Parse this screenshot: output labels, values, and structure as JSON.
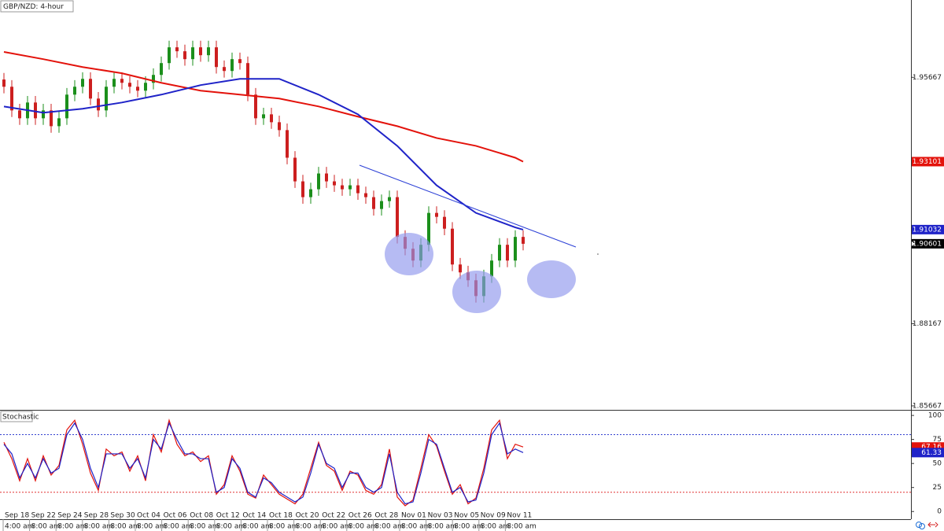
{
  "chart_data": [
    {
      "type": "candlestick",
      "title": "GBP/NZD: 4-hour",
      "open": [
        1.956,
        1.9538,
        1.9466,
        1.9442,
        1.949,
        1.9442,
        1.9466,
        1.9418,
        1.9442,
        1.9514,
        1.9538,
        1.9562,
        1.9502,
        1.9466,
        1.9538,
        1.9562,
        1.955,
        1.9538,
        1.9526,
        1.955,
        1.9574,
        1.961,
        1.9658,
        1.9646,
        1.9622,
        1.9658,
        1.9634,
        1.9658,
        1.9598,
        1.9586,
        1.9622,
        1.961,
        1.9514,
        1.9442,
        1.9454,
        1.943,
        1.9406,
        1.9322,
        1.925,
        1.9202,
        1.9226,
        1.9274,
        1.925,
        1.9238,
        1.9226,
        1.9238,
        1.9214,
        1.9202,
        1.9166,
        1.919,
        1.9202,
        1.9081,
        1.9045,
        1.9009,
        1.9057,
        1.9154,
        1.9142,
        1.9106,
        1.8997,
        1.8973,
        1.8949,
        1.8901,
        1.8961,
        1.9009,
        1.9057,
        1.9009,
        1.9081
      ],
      "high": [
        1.958,
        1.9558,
        1.9486,
        1.951,
        1.951,
        1.9486,
        1.9486,
        1.9462,
        1.9534,
        1.9558,
        1.9582,
        1.9582,
        1.9522,
        1.9558,
        1.9582,
        1.9582,
        1.957,
        1.9558,
        1.957,
        1.9594,
        1.963,
        1.9678,
        1.9678,
        1.9666,
        1.9678,
        1.9678,
        1.9678,
        1.9678,
        1.9618,
        1.9642,
        1.9642,
        1.963,
        1.9534,
        1.9474,
        1.9474,
        1.945,
        1.9426,
        1.9342,
        1.927,
        1.9246,
        1.9294,
        1.9294,
        1.927,
        1.9258,
        1.9258,
        1.9258,
        1.9234,
        1.9222,
        1.921,
        1.9222,
        1.9222,
        1.9101,
        1.9065,
        1.9077,
        1.9174,
        1.9174,
        1.9162,
        1.9126,
        1.9017,
        1.8993,
        1.8969,
        1.8981,
        1.9029,
        1.9077,
        1.9077,
        1.9101,
        1.9101
      ],
      "low": [
        1.9518,
        1.9446,
        1.9422,
        1.9422,
        1.9422,
        1.9422,
        1.9398,
        1.9398,
        1.9422,
        1.9494,
        1.9518,
        1.9482,
        1.9446,
        1.9446,
        1.9518,
        1.953,
        1.9518,
        1.9506,
        1.9506,
        1.953,
        1.9554,
        1.959,
        1.9626,
        1.9602,
        1.9602,
        1.9614,
        1.9614,
        1.9578,
        1.9566,
        1.9566,
        1.959,
        1.9494,
        1.9422,
        1.9422,
        1.941,
        1.9386,
        1.9302,
        1.923,
        1.9182,
        1.9182,
        1.9206,
        1.923,
        1.9218,
        1.9206,
        1.9206,
        1.9194,
        1.9182,
        1.9146,
        1.9146,
        1.917,
        1.9061,
        1.9025,
        1.8989,
        1.8989,
        1.9037,
        1.9122,
        1.9086,
        1.8977,
        1.8953,
        1.8929,
        1.8881,
        1.8881,
        1.8941,
        1.8989,
        1.8989,
        1.8989,
        1.904
      ],
      "close": [
        1.9538,
        1.9466,
        1.9442,
        1.949,
        1.9442,
        1.9466,
        1.9418,
        1.9442,
        1.9514,
        1.9538,
        1.9562,
        1.9502,
        1.9466,
        1.9538,
        1.9562,
        1.955,
        1.9538,
        1.9526,
        1.955,
        1.9574,
        1.961,
        1.9658,
        1.9646,
        1.9622,
        1.9658,
        1.9634,
        1.9658,
        1.9598,
        1.9586,
        1.9622,
        1.961,
        1.9514,
        1.9442,
        1.9454,
        1.943,
        1.9406,
        1.9322,
        1.925,
        1.9202,
        1.9226,
        1.9274,
        1.925,
        1.9238,
        1.9226,
        1.9238,
        1.9214,
        1.9202,
        1.9166,
        1.919,
        1.9202,
        1.9081,
        1.9045,
        1.9009,
        1.9057,
        1.9154,
        1.9142,
        1.9106,
        1.8997,
        1.8973,
        1.8949,
        1.8901,
        1.8961,
        1.9009,
        1.9057,
        1.9009,
        1.9081,
        1.906
      ],
      "up_color": "#1b8f1b",
      "down_color": "#cc1f1f",
      "overlays": [
        {
          "color": "#e3120b",
          "x": [
            0,
            5,
            10,
            15,
            20,
            25,
            30,
            35,
            40,
            45,
            50,
            55,
            60,
            65,
            66
          ],
          "values": [
            1.9644,
            1.9622,
            1.9598,
            1.9579,
            1.955,
            1.9526,
            1.9514,
            1.9502,
            1.9478,
            1.9447,
            1.9418,
            1.9382,
            1.9358,
            1.9322,
            1.931
          ]
        },
        {
          "color": "#1f23c8",
          "x": [
            0,
            5,
            10,
            15,
            20,
            25,
            30,
            35,
            40,
            45,
            50,
            55,
            60,
            65,
            66
          ],
          "values": [
            1.9478,
            1.9459,
            1.9471,
            1.949,
            1.9514,
            1.9543,
            1.9562,
            1.9562,
            1.9514,
            1.9454,
            1.9358,
            1.9238,
            1.9154,
            1.911,
            1.9103
          ]
        }
      ],
      "price_labels": [
        {
          "value": 1.93101,
          "color": "#e3120b"
        },
        {
          "value": 1.91032,
          "color": "#1f23c8"
        },
        {
          "value": 1.90601,
          "color": "#000000"
        }
      ],
      "xlim": [
        -0.5,
        115.3
      ],
      "ylim": [
        1.8557,
        1.9802
      ],
      "yticks": [
        1.85667,
        1.88167,
        1.95667
      ]
    },
    {
      "type": "line",
      "title": "Stochastic",
      "series": [
        {
          "color": "#e3120b",
          "values": [
            72,
            55,
            32,
            55,
            32,
            58,
            38,
            48,
            85,
            95,
            70,
            40,
            22,
            65,
            58,
            62,
            42,
            58,
            32,
            80,
            62,
            95,
            70,
            58,
            62,
            52,
            58,
            18,
            28,
            58,
            42,
            18,
            14,
            38,
            28,
            18,
            13,
            8,
            18,
            45,
            72,
            48,
            42,
            22,
            42,
            38,
            22,
            18,
            28,
            65,
            15,
            6,
            12,
            45,
            80,
            68,
            42,
            18,
            28,
            8,
            14,
            45,
            85,
            95,
            55,
            70,
            67.16
          ]
        },
        {
          "color": "#1f23c8",
          "values": [
            70,
            60,
            35,
            50,
            35,
            55,
            40,
            45,
            80,
            92,
            75,
            45,
            25,
            60,
            60,
            60,
            45,
            55,
            35,
            75,
            65,
            92,
            75,
            60,
            60,
            55,
            55,
            20,
            25,
            55,
            45,
            20,
            15,
            35,
            30,
            20,
            15,
            10,
            15,
            40,
            70,
            50,
            45,
            25,
            40,
            40,
            25,
            20,
            25,
            60,
            20,
            8,
            10,
            40,
            75,
            70,
            45,
            20,
            25,
            10,
            12,
            40,
            80,
            92,
            60,
            65,
            61.33
          ]
        }
      ],
      "levels": [
        {
          "value": 80,
          "color": "#3340d0"
        },
        {
          "value": 20,
          "color": "#e03030"
        }
      ],
      "price_labels": [
        {
          "value": 67.16,
          "color": "#e3120b"
        },
        {
          "value": 61.33,
          "color": "#1f23c8"
        }
      ],
      "xlim": [
        -0.5,
        115.3
      ],
      "ylim": [
        -8,
        105
      ],
      "yticks": [
        0,
        25,
        50,
        75,
        100
      ],
      "xticks": [
        {
          "value": -0.1,
          "label": "Sep 18"
        },
        {
          "value": 3.26,
          "label": "Sep 22"
        },
        {
          "value": 6.62,
          "label": "Sep 24"
        },
        {
          "value": 9.98,
          "label": "Sep 28"
        },
        {
          "value": 13.34,
          "label": "Sep 30"
        },
        {
          "value": 16.7,
          "label": "Oct 04"
        },
        {
          "value": 20.06,
          "label": "Oct 06"
        },
        {
          "value": 23.42,
          "label": "Oct 08"
        },
        {
          "value": 26.78,
          "label": "Oct 12"
        },
        {
          "value": 30.14,
          "label": "Oct 14"
        },
        {
          "value": 33.5,
          "label": "Oct 18"
        },
        {
          "value": 36.86,
          "label": "Oct 20"
        },
        {
          "value": 40.22,
          "label": "Oct 22"
        },
        {
          "value": 43.58,
          "label": "Oct 26"
        },
        {
          "value": 46.94,
          "label": "Oct 28"
        },
        {
          "value": 50.3,
          "label": "Nov 01"
        },
        {
          "value": 53.66,
          "label": "Nov 03"
        },
        {
          "value": 57.02,
          "label": "Nov 05"
        },
        {
          "value": 60.38,
          "label": "Nov 09"
        },
        {
          "value": 63.74,
          "label": "Nov 11"
        }
      ],
      "xtick_sublabels": [
        "4:00 am",
        "8:00 am",
        "8:00 am",
        "8:00 am",
        "8:00 am",
        "8:00 am",
        "8:00 am",
        "8:00 am",
        "8:00 am",
        "8:00 am",
        "8:00 am",
        "8:00 am",
        "8:00 am",
        "8:00 am",
        "8:00 am",
        "8:00 am",
        "8:00 am",
        "8:00 am",
        "8:00 am",
        "8:00 am"
      ]
    }
  ]
}
